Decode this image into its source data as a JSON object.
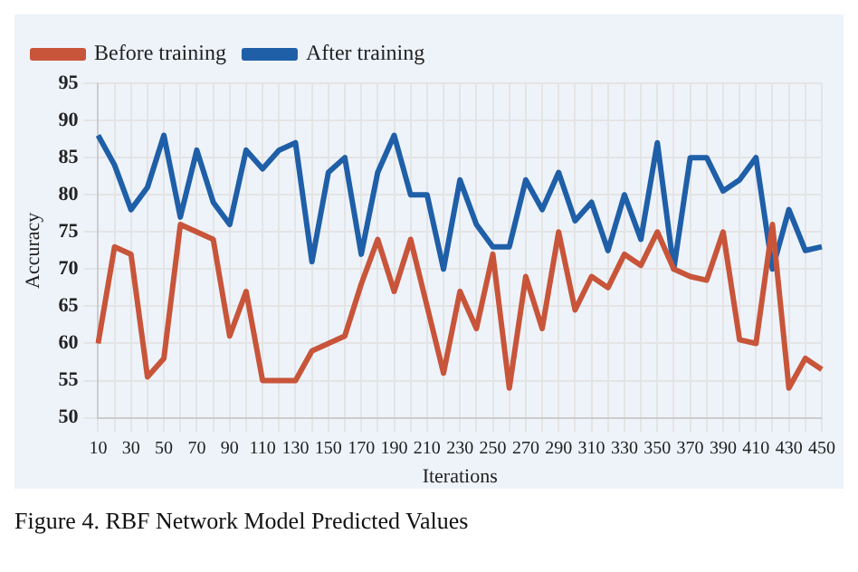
{
  "chart_data": {
    "type": "line",
    "xlabel": "Iterations",
    "ylabel": "Accuracy",
    "categories": [
      "10",
      null,
      "30",
      null,
      "50",
      null,
      "70",
      null,
      "90",
      null,
      "110",
      null,
      "130",
      null,
      "150",
      null,
      "170",
      null,
      "190",
      null,
      "210",
      null,
      "230",
      null,
      "250",
      null,
      "270",
      null,
      "290",
      null,
      "310",
      null,
      "330",
      null,
      "350",
      null,
      "370",
      null,
      "390",
      null,
      "410",
      null,
      "430",
      null,
      "450"
    ],
    "series": [
      {
        "name": "Before training",
        "color": "#c8553a",
        "values": [
          60,
          73,
          72,
          55.5,
          58,
          76,
          75,
          74,
          61,
          67,
          55,
          55,
          55,
          59,
          60,
          61,
          68,
          74,
          67,
          74,
          65,
          56,
          67,
          62,
          72,
          54,
          69,
          62,
          75,
          64.5,
          69,
          67.5,
          72,
          70.5,
          75,
          70,
          69,
          68.5,
          75,
          60.5,
          60,
          76,
          54,
          58,
          56.5
        ]
      },
      {
        "name": "After training",
        "color": "#1f5fa8",
        "values": [
          88,
          84,
          78,
          81,
          88,
          77,
          86,
          79,
          76,
          86,
          83.5,
          86,
          87,
          71,
          83,
          85,
          72,
          83,
          88,
          80,
          80,
          70,
          82,
          76,
          73,
          73,
          82,
          78,
          83,
          76.5,
          79,
          72.5,
          80,
          74,
          87,
          70,
          85,
          85,
          80.5,
          82,
          85,
          70,
          78,
          72.5,
          73
        ]
      }
    ],
    "ylim": [
      50,
      95
    ],
    "yticks": [
      50,
      55,
      60,
      65,
      70,
      75,
      80,
      85,
      90,
      95
    ],
    "grid": true,
    "legend": "top left",
    "marker": "none",
    "line_style": "solid",
    "annotations": [
      "Figure 4. RBF Network Model Predicted Values"
    ]
  }
}
